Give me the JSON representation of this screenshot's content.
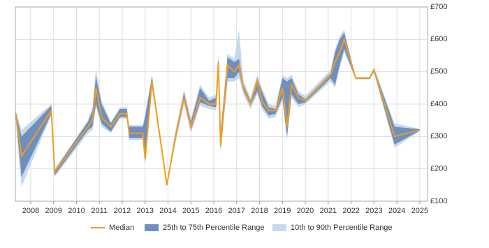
{
  "chart_data": {
    "type": "line_band",
    "x": [
      2007.35,
      2007.6,
      2008.9,
      2009.05,
      2010.5,
      2010.7,
      2010.85,
      2011.1,
      2011.5,
      2011.9,
      2012.2,
      2012.3,
      2012.9,
      2013.0,
      2013.3,
      2013.95,
      2014.3,
      2014.7,
      2015.0,
      2015.4,
      2015.8,
      2016.1,
      2016.2,
      2016.3,
      2016.6,
      2016.9,
      2017.1,
      2017.3,
      2017.6,
      2017.9,
      2018.1,
      2018.4,
      2018.7,
      2019.0,
      2019.2,
      2019.4,
      2019.7,
      2020.0,
      2021.1,
      2021.3,
      2021.5,
      2021.7,
      2022.2,
      2022.8,
      2023.0,
      2023.9,
      2025.0
    ],
    "series": [
      {
        "name": "10th to 90th Percentile Range",
        "color": "#c6d8ee",
        "low": [
          340,
          145,
          365,
          175,
          310,
          320,
          390,
          330,
          310,
          355,
          355,
          290,
          290,
          215,
          450,
          145,
          270,
          400,
          310,
          395,
          385,
          380,
          480,
          250,
          470,
          470,
          480,
          430,
          385,
          430,
          385,
          355,
          360,
          410,
          290,
          420,
          390,
          400,
          470,
          450,
          510,
          560,
          476,
          476,
          495,
          265,
          316
        ],
        "high": [
          380,
          320,
          400,
          200,
          350,
          390,
          510,
          410,
          345,
          390,
          390,
          335,
          335,
          370,
          490,
          155,
          310,
          445,
          355,
          460,
          420,
          430,
          550,
          320,
          555,
          540,
          630,
          470,
          420,
          490,
          450,
          400,
          395,
          490,
          480,
          490,
          440,
          425,
          505,
          570,
          610,
          630,
          484,
          484,
          515,
          340,
          324
        ]
      },
      {
        "name": "25th to 75th Percentile Range",
        "color": "#6f8fbe",
        "low": [
          360,
          175,
          370,
          180,
          320,
          330,
          400,
          340,
          315,
          360,
          360,
          295,
          295,
          220,
          455,
          148,
          280,
          410,
          320,
          405,
          395,
          390,
          490,
          260,
          480,
          480,
          500,
          440,
          395,
          440,
          395,
          365,
          370,
          420,
          300,
          430,
          400,
          405,
          480,
          460,
          520,
          570,
          478,
          478,
          500,
          275,
          318
        ],
        "high": [
          375,
          300,
          395,
          195,
          345,
          380,
          485,
          400,
          340,
          385,
          385,
          330,
          330,
          360,
          485,
          152,
          300,
          435,
          345,
          450,
          410,
          420,
          540,
          310,
          545,
          530,
          540,
          460,
          410,
          480,
          440,
          390,
          385,
          480,
          470,
          480,
          430,
          415,
          495,
          560,
          600,
          620,
          482,
          482,
          510,
          330,
          322
        ]
      },
      {
        "name": "Median",
        "color": "#f39c1c",
        "values": [
          370,
          240,
          380,
          190,
          330,
          350,
          450,
          360,
          330,
          370,
          370,
          310,
          310,
          230,
          470,
          150,
          290,
          420,
          330,
          420,
          400,
          400,
          530,
          270,
          520,
          500,
          520,
          450,
          400,
          470,
          410,
          380,
          380,
          450,
          330,
          460,
          420,
          410,
          490,
          530,
          560,
          600,
          480,
          480,
          505,
          300,
          320
        ]
      }
    ],
    "xlim": [
      2007.33,
      2025.34
    ],
    "xticks": [
      2008,
      2009,
      2010,
      2011,
      2012,
      2013,
      2014,
      2015,
      2016,
      2017,
      2018,
      2019,
      2020,
      2021,
      2022,
      2023,
      2024,
      2025
    ],
    "ylim": [
      100,
      700
    ],
    "yticks": [
      {
        "value": 100,
        "label": "£100"
      },
      {
        "value": 200,
        "label": "£200"
      },
      {
        "value": 300,
        "label": "£300"
      },
      {
        "value": 400,
        "label": "£400"
      },
      {
        "value": 500,
        "label": "£500"
      },
      {
        "value": 600,
        "label": "£600"
      },
      {
        "value": 700,
        "label": "£700"
      }
    ],
    "grid": true
  }
}
